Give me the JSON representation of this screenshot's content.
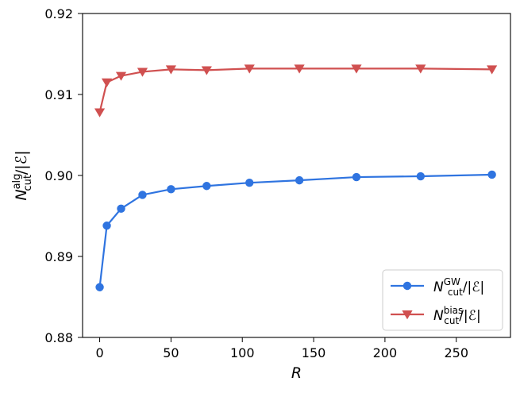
{
  "chart_data": {
    "type": "line",
    "title": "",
    "xlabel": "R",
    "ylabel": {
      "base": "N",
      "sup": "alg",
      "sub": "cut",
      "suffix": "/|ℰ|"
    },
    "xlim": [
      -12,
      288
    ],
    "ylim": [
      0.88,
      0.92
    ],
    "xticks": [
      0,
      50,
      100,
      150,
      200,
      250
    ],
    "yticks": [
      0.88,
      0.89,
      0.9,
      0.91,
      0.92
    ],
    "xtick_labels": [
      "0",
      "50",
      "100",
      "150",
      "200",
      "250"
    ],
    "ytick_labels": [
      "0.88",
      "0.89",
      "0.90",
      "0.91",
      "0.92"
    ],
    "grid": false,
    "legend_position": "lower-right",
    "series": [
      {
        "name": "N_cut^GW/|ℰ|",
        "legend": {
          "base": "N",
          "sup": "GW",
          "sub": "cut",
          "suffix": "/|ℰ|"
        },
        "color": "#2f74e0",
        "marker": "circle",
        "x": [
          0,
          5,
          15,
          30,
          50,
          75,
          105,
          140,
          180,
          225,
          275
        ],
        "y": [
          0.8862,
          0.8938,
          0.8959,
          0.8976,
          0.8983,
          0.8987,
          0.8991,
          0.8994,
          0.8998,
          0.8999,
          0.9001
        ]
      },
      {
        "name": "N_cut^bias/|ℰ|",
        "legend": {
          "base": "N",
          "sup": "bias",
          "sub": "cut",
          "suffix": "/|ℰ|"
        },
        "color": "#d05050",
        "marker": "triangle-down",
        "x": [
          0,
          5,
          15,
          30,
          50,
          75,
          105,
          140,
          180,
          225,
          275
        ],
        "y": [
          0.9078,
          0.9115,
          0.9123,
          0.9128,
          0.9131,
          0.913,
          0.9132,
          0.9132,
          0.9132,
          0.9132,
          0.9131
        ]
      }
    ]
  }
}
